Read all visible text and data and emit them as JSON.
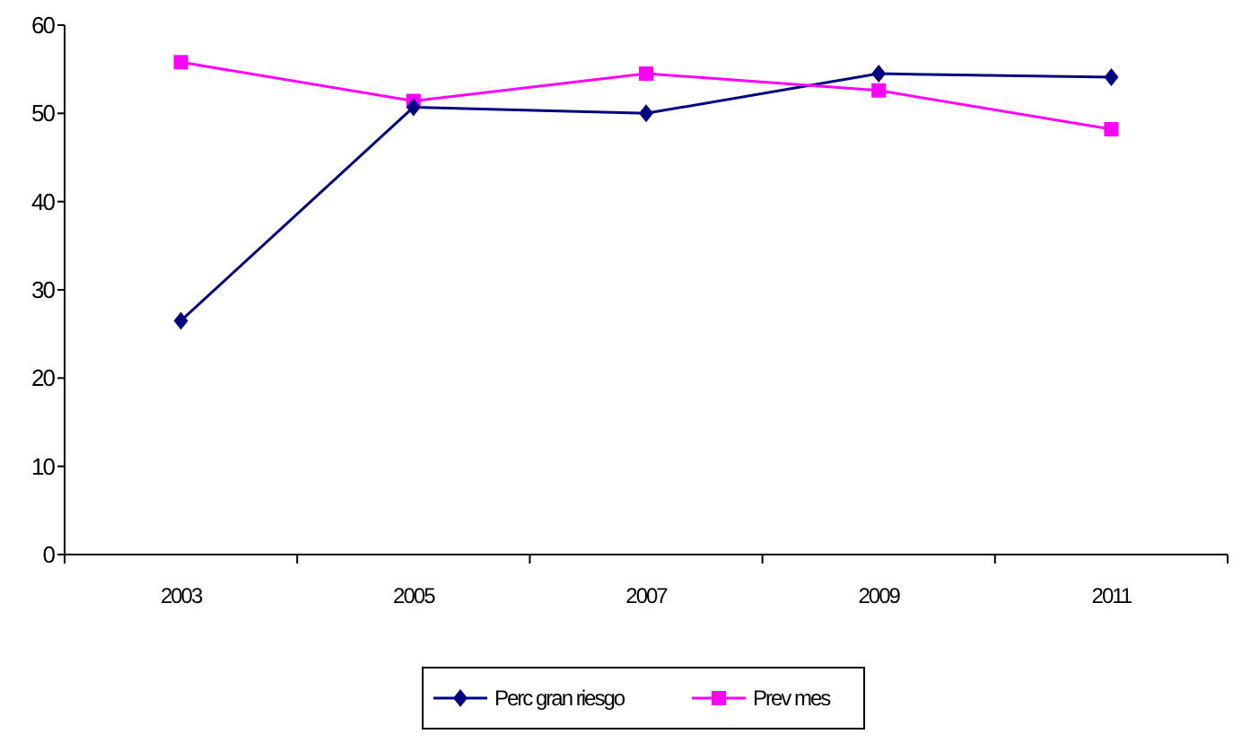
{
  "chart_data": {
    "type": "line",
    "categories": [
      "2003",
      "2005",
      "2007",
      "2009",
      "2011"
    ],
    "series": [
      {
        "name": "Perc gran riesgo",
        "color": "#000080",
        "marker": "diamond",
        "values": [
          26.5,
          50.7,
          50,
          54.5,
          54.1
        ]
      },
      {
        "name": "Prev mes",
        "color": "#ff00ff",
        "marker": "square",
        "values": [
          55.8,
          51.4,
          54.5,
          52.6,
          48.2
        ]
      }
    ],
    "ylim": [
      0,
      60
    ],
    "yticks": [
      0,
      10,
      20,
      30,
      40,
      50,
      60
    ],
    "grid": false,
    "legend": "bottom"
  }
}
